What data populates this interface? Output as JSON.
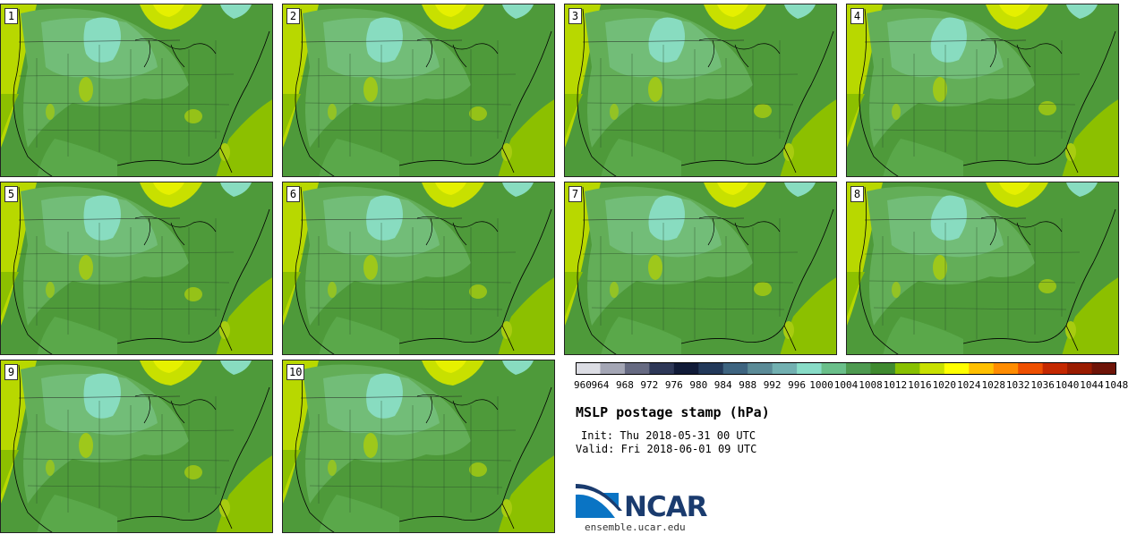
{
  "panels": [
    {
      "label": "1"
    },
    {
      "label": "2"
    },
    {
      "label": "3"
    },
    {
      "label": "4"
    },
    {
      "label": "5"
    },
    {
      "label": "6"
    },
    {
      "label": "7"
    },
    {
      "label": "8"
    },
    {
      "label": "9"
    },
    {
      "label": "10"
    }
  ],
  "colorbar": {
    "ticks": [
      "960",
      "964",
      "968",
      "972",
      "976",
      "980",
      "984",
      "988",
      "992",
      "996",
      "1000",
      "1004",
      "1008",
      "1012",
      "1016",
      "1020",
      "1024",
      "1028",
      "1032",
      "1036",
      "1040",
      "1044",
      "1048"
    ],
    "colors": [
      "#dcdde4",
      "#a4a6b5",
      "#666a82",
      "#2e3858",
      "#111b38",
      "#23395a",
      "#3e6480",
      "#5b8b97",
      "#72b0b1",
      "#88dcc7",
      "#6abf8a",
      "#4e9a50",
      "#3f8a2f",
      "#88c000",
      "#c8e000",
      "#ffff00",
      "#ffc000",
      "#ff8c00",
      "#ee4f00",
      "#c42800",
      "#9a1c00",
      "#6e1408"
    ]
  },
  "title": "MSLP postage stamp (hPa)",
  "init": "Init: Thu 2018-05-31 00 UTC",
  "valid": "Valid: Fri 2018-06-01 09 UTC",
  "logo": {
    "text": "NCAR",
    "site": "ensemble.ucar.edu"
  }
}
